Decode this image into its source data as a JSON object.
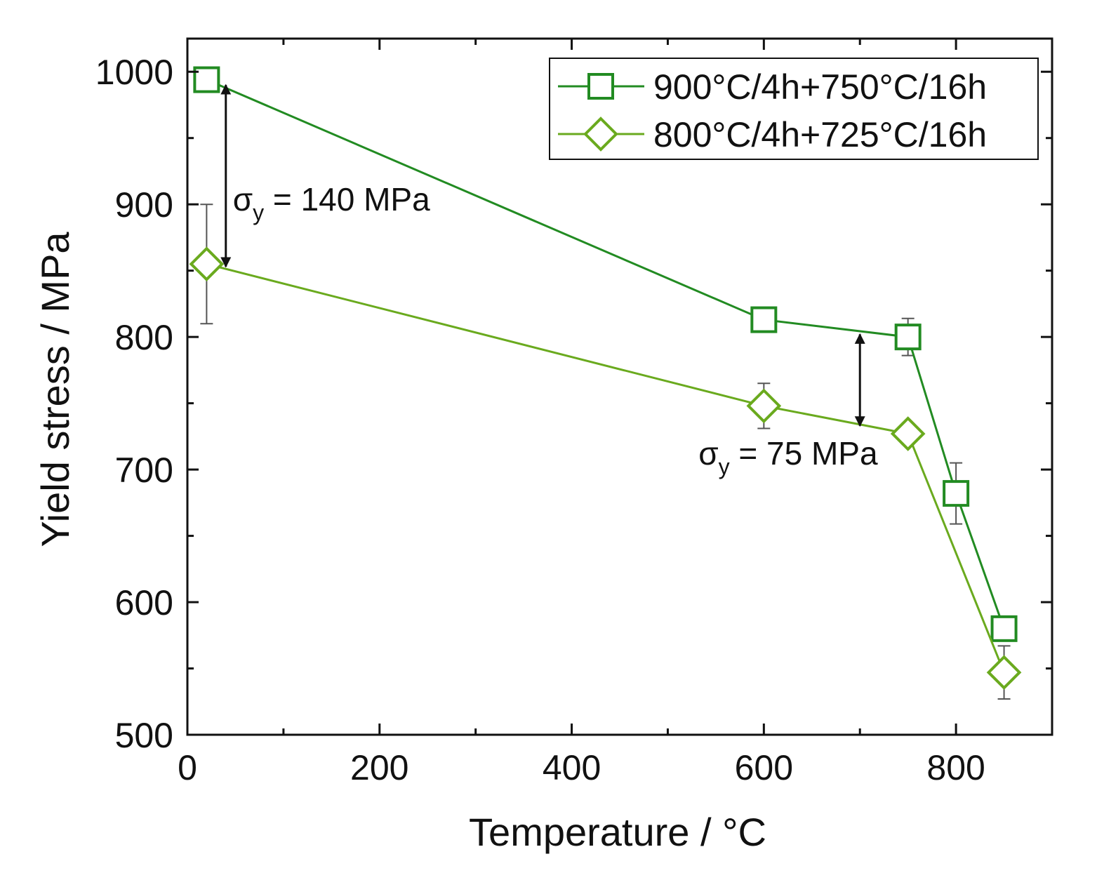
{
  "chart_data": {
    "type": "line",
    "title": "",
    "xlabel": "Temperature / °C",
    "ylabel": "Yield stress / MPa",
    "xlim": [
      0,
      900
    ],
    "ylim": [
      500,
      1025
    ],
    "xticks": [
      0,
      200,
      400,
      600,
      800
    ],
    "xticks_minor": [
      100,
      300,
      500,
      700
    ],
    "yticks": [
      500,
      600,
      700,
      800,
      900,
      1000
    ],
    "yticks_minor": [
      550,
      650,
      750,
      850,
      950
    ],
    "grid": false,
    "legend_position": "top-right",
    "series": [
      {
        "name": "900°C/4h+750°C/16h",
        "marker": "square",
        "color": "#228b22",
        "x": [
          20,
          600,
          750,
          800,
          850
        ],
        "values": [
          994,
          813,
          800,
          682,
          580
        ],
        "err": [
          null,
          6,
          14,
          23,
          null
        ]
      },
      {
        "name": "800°C/4h+725°C/16h",
        "marker": "diamond",
        "color": "#6aaa1e",
        "x": [
          20,
          600,
          750,
          850
        ],
        "values": [
          855,
          748,
          727,
          547
        ],
        "err": [
          45,
          17,
          8,
          20
        ]
      }
    ],
    "annotations": [
      {
        "text_main": "σ",
        "text_sub": "y",
        "text_rest": " = 140 MPa",
        "x": 40,
        "y_from": 990,
        "y_to": 853
      },
      {
        "text_main": "σ",
        "text_sub": "y",
        "text_rest": " = 75 MPa",
        "x": 700,
        "y_from": 802,
        "y_to": 733
      }
    ]
  }
}
